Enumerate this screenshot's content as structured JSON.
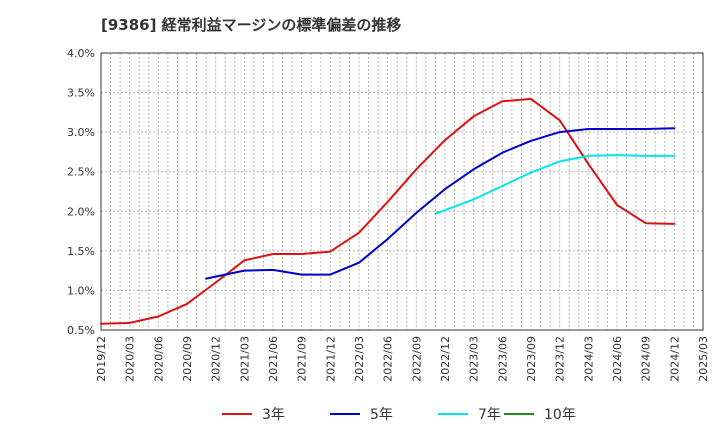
{
  "chart_data": {
    "type": "line",
    "title": "[9386]  経常利益マージンの標準偏差の推移",
    "xlabel": "",
    "ylabel": "",
    "ylim": [
      0.5,
      4.0
    ],
    "y_ticks": [
      "0.5%",
      "1.0%",
      "1.5%",
      "2.0%",
      "2.5%",
      "3.0%",
      "3.5%",
      "4.0%"
    ],
    "y_tick_values": [
      0.5,
      1.0,
      1.5,
      2.0,
      2.5,
      3.0,
      3.5,
      4.0
    ],
    "x_ticks": [
      "2019/12",
      "2020/03",
      "2020/06",
      "2020/09",
      "2020/12",
      "2021/03",
      "2021/06",
      "2021/09",
      "2021/12",
      "2022/03",
      "2022/06",
      "2022/09",
      "2022/12",
      "2023/03",
      "2023/06",
      "2023/09",
      "2023/12",
      "2024/03",
      "2024/06",
      "2024/09",
      "2024/12",
      "2025/03"
    ],
    "grid": true,
    "legend_position": "bottom",
    "series": [
      {
        "name": "3年",
        "color": "#dd1111",
        "points": [
          [
            "2019/12",
            0.58
          ],
          [
            "2020/03",
            0.59
          ],
          [
            "2020/06",
            0.67
          ],
          [
            "2020/09",
            0.83
          ],
          [
            "2020/12",
            1.1
          ],
          [
            "2021/03",
            1.38
          ],
          [
            "2021/06",
            1.46
          ],
          [
            "2021/09",
            1.46
          ],
          [
            "2021/12",
            1.49
          ],
          [
            "2022/03",
            1.73
          ],
          [
            "2022/06",
            2.12
          ],
          [
            "2022/09",
            2.53
          ],
          [
            "2022/12",
            2.9
          ],
          [
            "2023/03",
            3.2
          ],
          [
            "2023/06",
            3.39
          ],
          [
            "2023/09",
            3.42
          ],
          [
            "2023/12",
            3.15
          ],
          [
            "2024/03",
            2.6
          ],
          [
            "2024/06",
            2.08
          ],
          [
            "2024/09",
            1.85
          ],
          [
            "2024/12",
            1.84
          ]
        ]
      },
      {
        "name": "5年",
        "color": "#0000cc",
        "points": [
          [
            "2020/11",
            1.15
          ],
          [
            "2021/01",
            1.2
          ],
          [
            "2021/03",
            1.25
          ],
          [
            "2021/06",
            1.26
          ],
          [
            "2021/09",
            1.2
          ],
          [
            "2021/12",
            1.2
          ],
          [
            "2022/03",
            1.35
          ],
          [
            "2022/06",
            1.65
          ],
          [
            "2022/09",
            1.98
          ],
          [
            "2022/12",
            2.28
          ],
          [
            "2023/03",
            2.53
          ],
          [
            "2023/06",
            2.74
          ],
          [
            "2023/09",
            2.89
          ],
          [
            "2023/12",
            3.0
          ],
          [
            "2024/03",
            3.04
          ],
          [
            "2024/06",
            3.04
          ],
          [
            "2024/09",
            3.04
          ],
          [
            "2024/12",
            3.05
          ]
        ]
      },
      {
        "name": "7年",
        "color": "#00e5ee",
        "points": [
          [
            "2022/11",
            1.97
          ],
          [
            "2023/03",
            2.15
          ],
          [
            "2023/06",
            2.32
          ],
          [
            "2023/09",
            2.49
          ],
          [
            "2023/12",
            2.63
          ],
          [
            "2024/03",
            2.7
          ],
          [
            "2024/06",
            2.71
          ],
          [
            "2024/09",
            2.7
          ],
          [
            "2024/12",
            2.7
          ]
        ]
      },
      {
        "name": "10年",
        "color": "#228b22",
        "points": []
      }
    ]
  }
}
